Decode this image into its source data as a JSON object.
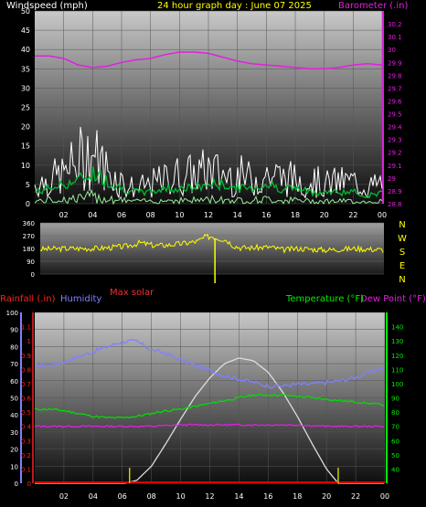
{
  "chart_data": [
    {
      "type": "line",
      "title": "24 hour graph day : June 07 2025",
      "ylabel_left": "Windspeed (mph)",
      "ylabel_right": "Barometer (.in)",
      "x_ticks": [
        "02",
        "04",
        "06",
        "08",
        "10",
        "12",
        "14",
        "16",
        "18",
        "20",
        "22",
        "00"
      ],
      "x_range_hours": [
        0,
        24
      ],
      "ylim_left": [
        0,
        50
      ],
      "ylim_right": [
        28.8,
        30.3
      ],
      "y_ticks_left": [
        0,
        5,
        10,
        15,
        20,
        25,
        30,
        35,
        40,
        45,
        50
      ],
      "y_ticks_right": [
        "28.8",
        "28.9",
        "29",
        "29.1",
        "29.2",
        "29.3",
        "29.4",
        "29.5",
        "29.6",
        "29.7",
        "29.8",
        "29.9",
        "30",
        "30.1",
        "30.2"
      ],
      "series": [
        {
          "name": "Windspeed (mph)",
          "key": "gust",
          "color": "#ffffff",
          "hours": [
            0,
            1,
            2,
            3,
            3.5,
            4,
            4.5,
            5,
            6,
            7,
            8,
            9,
            10,
            11,
            12,
            13,
            14,
            15,
            16,
            17,
            18,
            19,
            20,
            21,
            22,
            23,
            24
          ],
          "values": [
            8,
            10,
            12,
            18,
            20,
            22,
            17,
            14,
            9,
            6,
            8,
            10,
            12,
            12,
            14,
            12,
            12,
            10,
            12,
            11,
            10,
            10,
            8,
            9,
            9,
            7,
            8
          ]
        },
        {
          "key": "avg",
          "color": "#00cc33",
          "hours": [
            0,
            1,
            2,
            3,
            4,
            5,
            6,
            7,
            8,
            9,
            10,
            11,
            12,
            13,
            14,
            15,
            16,
            17,
            18,
            19,
            20,
            21,
            22,
            23,
            24
          ],
          "values": [
            3,
            4,
            5,
            6,
            8,
            6,
            4,
            3,
            3,
            4,
            4,
            4,
            5,
            5,
            4,
            4,
            5,
            4,
            4,
            3,
            3,
            3,
            3,
            2,
            3
          ]
        },
        {
          "name": "Barometer (.in)",
          "key": "baro",
          "color": "#e020e0",
          "hours": [
            0,
            1,
            2,
            3,
            4,
            5,
            6,
            7,
            8,
            9,
            10,
            11,
            12,
            13,
            14,
            15,
            16,
            17,
            18,
            19,
            20,
            21,
            22,
            23,
            24
          ],
          "values": [
            29.95,
            29.95,
            29.93,
            29.88,
            29.86,
            29.87,
            29.9,
            29.92,
            29.93,
            29.96,
            29.98,
            29.98,
            29.97,
            29.94,
            29.91,
            29.89,
            29.88,
            29.87,
            29.86,
            29.85,
            29.85,
            29.86,
            29.88,
            29.89,
            29.88
          ]
        }
      ]
    },
    {
      "type": "line",
      "ylim": [
        0,
        360
      ],
      "y_ticks": [
        0,
        90,
        180,
        270,
        360
      ],
      "compass_labels": [
        "N",
        "W",
        "S",
        "E",
        "N"
      ],
      "series": [
        {
          "key": "dir",
          "color": "#ffff00",
          "hours": [
            0,
            2,
            4,
            6,
            7,
            8,
            9,
            10,
            11,
            11.5,
            12,
            12.5,
            13,
            13.5,
            14,
            15,
            16,
            17,
            18,
            19,
            20,
            21,
            22,
            23,
            24
          ],
          "values": [
            175,
            180,
            180,
            195,
            220,
            200,
            205,
            215,
            230,
            260,
            265,
            250,
            240,
            200,
            185,
            185,
            190,
            170,
            180,
            175,
            170,
            175,
            180,
            175,
            170
          ]
        }
      ]
    },
    {
      "type": "line",
      "annotation": "Max solar",
      "ylabel_rain": "Rainfall (.in)",
      "ylabel_humidity": "Humidity",
      "ylabel_right": "Temperature (°F)",
      "ylabel_dew": "Dew Point (°F)",
      "x_ticks": [
        "02",
        "04",
        "06",
        "08",
        "10",
        "12",
        "14",
        "16",
        "18",
        "20",
        "22",
        "00"
      ],
      "ylim_humidity": [
        0,
        100
      ],
      "ylim_rain": [
        0,
        1.2
      ],
      "ylim_temp": [
        30,
        150
      ],
      "y_ticks_humidity": [
        0,
        10,
        20,
        30,
        40,
        50,
        60,
        70,
        80,
        90,
        100
      ],
      "y_ticks_rain": [
        "0",
        "0.1",
        "0.2",
        "0.3",
        "0.4",
        "0.5",
        "0.6",
        "0.7",
        "0.8",
        "0.9",
        "1",
        "1.1"
      ],
      "y_ticks_temp": [
        40,
        50,
        60,
        70,
        80,
        90,
        100,
        110,
        120,
        130,
        140
      ],
      "series": [
        {
          "name": "Humidity",
          "key": "hum",
          "color": "#8080ff",
          "hours": [
            0,
            1,
            2,
            3,
            4,
            5,
            6,
            7,
            8,
            9,
            10,
            11,
            12,
            13,
            14,
            15,
            16,
            17,
            18,
            19,
            20,
            21,
            22,
            23,
            24
          ],
          "values": [
            69,
            69,
            71,
            74,
            77,
            80,
            83,
            83,
            78,
            76,
            72,
            69,
            66,
            63,
            61,
            59,
            57,
            57,
            58,
            58,
            59,
            60,
            62,
            65,
            68
          ]
        },
        {
          "name": "Temperature (°F)",
          "key": "temp",
          "color": "#00cc00",
          "hours": [
            0,
            1,
            2,
            3,
            4,
            5,
            6,
            7,
            8,
            9,
            10,
            11,
            12,
            13,
            14,
            15,
            16,
            17,
            18,
            19,
            20,
            21,
            22,
            23,
            24
          ],
          "values": [
            82,
            82,
            81,
            79,
            77,
            76,
            76,
            77,
            79,
            81,
            82,
            84,
            86,
            88,
            90,
            92,
            92,
            92,
            91,
            90,
            89,
            88,
            87,
            86,
            85
          ]
        },
        {
          "name": "Dew Point (°F)",
          "key": "dew",
          "color": "#e020e0",
          "hours": [
            0,
            2,
            4,
            6,
            8,
            10,
            12,
            14,
            16,
            18,
            20,
            22,
            24
          ],
          "values": [
            70,
            70,
            70,
            70,
            70,
            71,
            71,
            71,
            71,
            71,
            70,
            70,
            70
          ]
        },
        {
          "key": "solar",
          "color": "#cccccc",
          "hours": [
            0,
            6.2,
            7,
            8,
            9,
            10,
            11,
            12,
            13,
            14,
            15,
            16,
            17,
            18,
            19,
            20,
            20.8,
            24
          ],
          "values": [
            0,
            0,
            0.02,
            0.12,
            0.28,
            0.45,
            0.61,
            0.74,
            0.84,
            0.88,
            0.86,
            0.78,
            0.64,
            0.47,
            0.28,
            0.1,
            0,
            0
          ]
        },
        {
          "key": "rain",
          "color": "#dd0000",
          "hours": [
            0,
            24
          ],
          "values": [
            0,
            0
          ]
        }
      ],
      "markers_hours": [
        6.5,
        20.8
      ],
      "marker_color": "#cccc00"
    }
  ]
}
